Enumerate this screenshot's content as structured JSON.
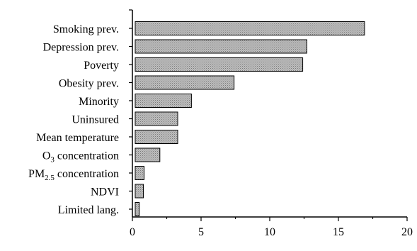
{
  "chart_data": {
    "type": "bar",
    "orientation": "horizontal",
    "categories": [
      "Smoking prev.",
      "Depression prev.",
      "Poverty",
      "Obesity prev.",
      "Minority",
      "Uninsured",
      "Mean temperature",
      "O3 concentration",
      "PM2.5 concentration",
      "NDVI",
      "Limited lang."
    ],
    "category_parts": [
      {
        "main": "Smoking prev."
      },
      {
        "main": "Depression prev."
      },
      {
        "main": "Poverty"
      },
      {
        "main": "Obesity prev."
      },
      {
        "main": "Minority"
      },
      {
        "main": "Uninsured"
      },
      {
        "main": "Mean temperature"
      },
      {
        "main": "O",
        "sub": "3",
        "rest": " concentration"
      },
      {
        "main": "PM",
        "sub": "2.5",
        "rest": " concentration"
      },
      {
        "main": "NDVI"
      },
      {
        "main": "Limited lang."
      }
    ],
    "values": [
      16.9,
      12.7,
      12.4,
      7.4,
      4.3,
      3.3,
      3.3,
      2.0,
      0.85,
      0.8,
      0.5
    ],
    "xlim": [
      0,
      20
    ],
    "xticks": [
      0,
      5,
      10,
      15,
      20
    ],
    "grid": false,
    "bar_color": "#b3b3b3",
    "title": "",
    "xlabel": "",
    "ylabel": ""
  }
}
